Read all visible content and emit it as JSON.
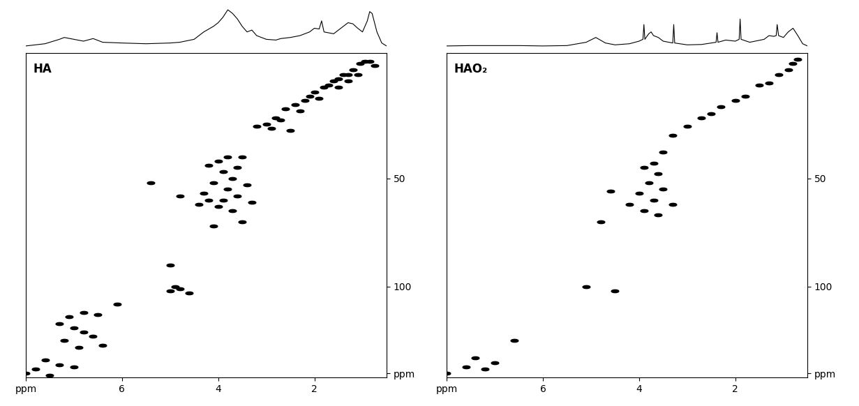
{
  "chart_data": [
    {
      "type": "line",
      "x": [
        8.0,
        7.6,
        7.3,
        7.2,
        7.0,
        6.8,
        6.6,
        6.4,
        6.0,
        5.5,
        5.0,
        4.8,
        4.5,
        4.3,
        4.1,
        4.0,
        3.9,
        3.8,
        3.7,
        3.6,
        3.5,
        3.4,
        3.3,
        3.2,
        3.0,
        2.8,
        2.7,
        2.5,
        2.3,
        2.1,
        2.0,
        1.9,
        1.85,
        1.8,
        1.6,
        1.4,
        1.3,
        1.2,
        1.1,
        1.0,
        0.9,
        0.85,
        0.8,
        0.7,
        0.6,
        0.5
      ],
      "values": [
        0.02,
        0.08,
        0.2,
        0.25,
        0.2,
        0.15,
        0.22,
        0.12,
        0.1,
        0.08,
        0.1,
        0.12,
        0.2,
        0.4,
        0.55,
        0.65,
        0.8,
        1.0,
        0.9,
        0.75,
        0.55,
        0.4,
        0.45,
        0.3,
        0.2,
        0.18,
        0.22,
        0.25,
        0.3,
        0.4,
        0.5,
        0.48,
        0.7,
        0.4,
        0.35,
        0.55,
        0.65,
        0.62,
        0.5,
        0.4,
        0.7,
        0.95,
        0.9,
        0.4,
        0.1,
        0.02
      ],
      "color": "#000000",
      "xlim": [
        8,
        0.5
      ],
      "ylim": [
        0,
        1.1
      ],
      "tick_labels": false
    },
    {
      "type": "scatter",
      "title": "HA",
      "x": [
        0.85,
        0.95,
        1.05,
        0.75,
        1.2,
        1.3,
        1.4,
        1.1,
        1.5,
        1.6,
        1.3,
        1.7,
        1.8,
        1.5,
        2.0,
        2.1,
        1.9,
        2.2,
        2.4,
        2.6,
        2.3,
        2.8,
        2.7,
        3.0,
        2.9,
        3.2,
        2.5,
        3.5,
        3.8,
        4.0,
        4.2,
        3.6,
        3.9,
        3.7,
        4.1,
        3.4,
        3.8,
        4.3,
        3.6,
        3.9,
        3.3,
        4.0,
        3.7,
        4.2,
        4.4,
        4.8,
        5.4,
        3.5,
        4.1,
        5.0,
        4.9,
        5.0,
        4.6,
        4.8,
        6.1,
        6.8,
        7.1,
        6.5,
        7.3,
        7.0,
        6.8,
        6.6,
        7.2,
        6.4,
        6.9,
        7.6,
        7.3,
        7.8,
        7.0,
        8.0,
        7.5
      ],
      "values": [
        -4,
        -4,
        -3,
        -2,
        0,
        2,
        2,
        2,
        4,
        5,
        5,
        7,
        8,
        8,
        10,
        12,
        13,
        14,
        16,
        18,
        19,
        22,
        23,
        25,
        27,
        26,
        28,
        40,
        40,
        42,
        44,
        45,
        47,
        50,
        52,
        53,
        55,
        57,
        58,
        60,
        61,
        63,
        65,
        60,
        62,
        58,
        52,
        70,
        72,
        90,
        100,
        102,
        103,
        101,
        108,
        112,
        114,
        113,
        117,
        119,
        121,
        123,
        125,
        127,
        128,
        134,
        136,
        138,
        137,
        140,
        141
      ],
      "color": "#000000",
      "marker": "ellipse",
      "xlim": [
        8,
        0.5
      ],
      "ylim": [
        142,
        -8
      ],
      "xticks": [
        {
          "value": 8,
          "label": "ppm"
        },
        6,
        4,
        2
      ],
      "yticks": [
        50,
        100,
        {
          "value": 140,
          "label": "ppm"
        }
      ]
    },
    {
      "type": "line",
      "x": [
        8.0,
        7.5,
        7.0,
        6.5,
        6.0,
        5.5,
        5.1,
        4.9,
        4.7,
        4.5,
        4.2,
        4.0,
        3.92,
        3.9,
        3.88,
        3.8,
        3.75,
        3.7,
        3.6,
        3.5,
        3.3,
        3.28,
        3.26,
        3.0,
        2.7,
        2.5,
        2.4,
        2.38,
        2.36,
        2.2,
        2.0,
        1.92,
        1.9,
        1.88,
        1.7,
        1.4,
        1.3,
        1.2,
        1.15,
        1.13,
        1.1,
        1.0,
        0.9,
        0.8,
        0.7,
        0.6,
        0.5
      ],
      "values": [
        0.02,
        0.03,
        0.03,
        0.03,
        0.02,
        0.03,
        0.12,
        0.25,
        0.1,
        0.05,
        0.08,
        0.15,
        0.2,
        0.6,
        0.2,
        0.35,
        0.4,
        0.3,
        0.25,
        0.15,
        0.1,
        0.6,
        0.1,
        0.05,
        0.06,
        0.1,
        0.12,
        0.38,
        0.12,
        0.18,
        0.15,
        0.2,
        0.75,
        0.2,
        0.12,
        0.2,
        0.3,
        0.28,
        0.3,
        0.6,
        0.3,
        0.25,
        0.4,
        0.5,
        0.3,
        0.08,
        0.02
      ],
      "color": "#000000",
      "xlim": [
        8,
        0.5
      ],
      "ylim": [
        0,
        1.1
      ],
      "tick_labels": false
    },
    {
      "type": "scatter",
      "title": "HAO₂",
      "x": [
        0.7,
        0.8,
        0.9,
        1.1,
        1.3,
        1.5,
        1.8,
        2.0,
        2.3,
        2.5,
        2.7,
        3.0,
        3.3,
        3.5,
        3.7,
        3.9,
        3.6,
        3.8,
        3.5,
        4.0,
        3.7,
        3.3,
        3.9,
        3.6,
        4.2,
        4.6,
        4.8,
        5.1,
        4.5,
        6.6,
        7.4,
        7.6,
        7.2,
        8.0,
        7.0
      ],
      "values": [
        -5,
        -3,
        0,
        2,
        6,
        7,
        12,
        14,
        17,
        20,
        22,
        26,
        30,
        38,
        43,
        45,
        48,
        52,
        55,
        57,
        60,
        62,
        65,
        67,
        62,
        56,
        70,
        100,
        102,
        125,
        133,
        137,
        138,
        140,
        135
      ],
      "color": "#000000",
      "marker": "ellipse",
      "xlim": [
        8,
        0.5
      ],
      "ylim": [
        142,
        -8
      ],
      "xticks": [
        {
          "value": 8,
          "label": "ppm"
        },
        6,
        4,
        2
      ],
      "yticks": [
        50,
        100,
        {
          "value": 140,
          "label": "ppm"
        }
      ]
    }
  ]
}
